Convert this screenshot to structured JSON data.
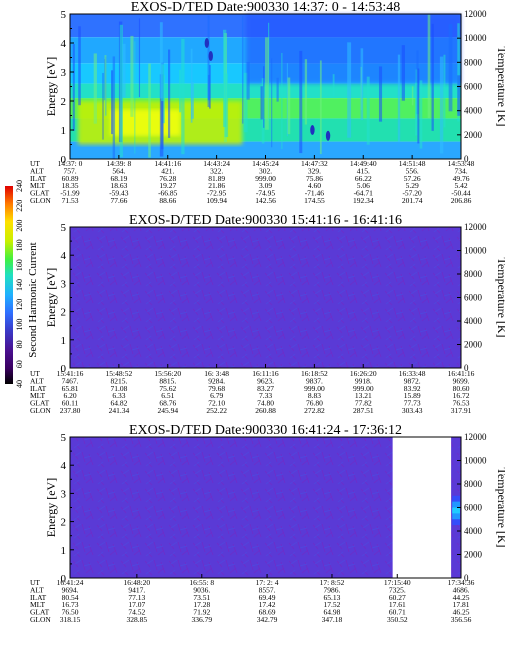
{
  "colorbar": {
    "label": "Second Harmonic Current",
    "ticks": [
      "40",
      "60",
      "80",
      "100",
      "120",
      "140",
      "160",
      "180",
      "200",
      "220",
      "240"
    ],
    "colors": [
      "#000000",
      "#2a0040",
      "#4a0070",
      "#5a1aa0",
      "#3a3ac8",
      "#2f6fff",
      "#1fa8ff",
      "#18d0e0",
      "#20e0a0",
      "#40f040",
      "#a0f010",
      "#e0ff00",
      "#ffe000",
      "#ff9a00",
      "#ff4000",
      "#e00000"
    ]
  },
  "chart_data": [
    {
      "type": "heatmap",
      "title": "EXOS-D/TED   Date:900330  14:37: 0 - 14:53:48",
      "ylabel": "Energy [eV]",
      "y2label": "Temperature [K]",
      "ylim": [
        0,
        5
      ],
      "y2lim": [
        0,
        12000
      ],
      "yticks": [
        "0",
        "1",
        "2",
        "3",
        "4",
        "5"
      ],
      "y2ticks": [
        "0",
        "2000",
        "4000",
        "6000",
        "8000",
        "10000",
        "12000"
      ],
      "row_labels": [
        "UT",
        "ALT",
        "ILAT",
        "MLT",
        "GLAT",
        "GLON"
      ],
      "columns": [
        [
          "14:37: 0",
          "757.",
          "60.89",
          "18.35",
          "-51.99",
          "71.53"
        ],
        [
          "14:39: 8",
          "564.",
          "68.19",
          "18.63",
          "-59.43",
          "77.66"
        ],
        [
          "14:41:16",
          "421.",
          "76.28",
          "19.27",
          "-66.85",
          "88.66"
        ],
        [
          "14:43:24",
          "322.",
          "81.89",
          "21.86",
          "-72.95",
          "109.94"
        ],
        [
          "14:45:24",
          "302.",
          "999.00",
          "3.09",
          "-74.95",
          "142.56"
        ],
        [
          "14:47:32",
          "329.",
          "75.86",
          "4.60",
          "-71.46",
          "174.55"
        ],
        [
          "14:49:40",
          "415.",
          "66.22",
          "5.06",
          "-64.71",
          "192.34"
        ],
        [
          "14:51:48",
          "556.",
          "57.26",
          "5.29",
          "-57.20",
          "201.74"
        ],
        [
          "14:53:48",
          "734.",
          "49.76",
          "5.42",
          "-50.44",
          "206.86"
        ]
      ],
      "coverage": [
        0,
        1
      ],
      "pattern": "spectrogram"
    },
    {
      "type": "heatmap",
      "title": "EXOS-D/TED   Date:900330  15:41:16 - 16:41:16",
      "ylabel": "Energy [eV]",
      "y2label": "Temperature [K]",
      "ylim": [
        0,
        5
      ],
      "y2lim": [
        0,
        12000
      ],
      "yticks": [
        "0",
        "1",
        "2",
        "3",
        "4",
        "5"
      ],
      "y2ticks": [
        "0",
        "2000",
        "4000",
        "6000",
        "8000",
        "10000",
        "12000"
      ],
      "row_labels": [
        "UT",
        "ALT",
        "ILAT",
        "MLT",
        "GLAT",
        "GLON"
      ],
      "columns": [
        [
          "15:41:16",
          "7467.",
          "65.81",
          "6.20",
          "60.11",
          "237.80"
        ],
        [
          "15:48:52",
          "8215.",
          "71.08",
          "6.33",
          "64.82",
          "241.34"
        ],
        [
          "15:56:20",
          "8815.",
          "75.62",
          "6.51",
          "68.76",
          "245.94"
        ],
        [
          "16: 3:48",
          "9284.",
          "79.68",
          "6.79",
          "72.10",
          "252.22"
        ],
        [
          "16:11:16",
          "9623.",
          "83.27",
          "7.33",
          "74.80",
          "260.88"
        ],
        [
          "16:18:52",
          "9837.",
          "999.00",
          "8.83",
          "76.80",
          "272.82"
        ],
        [
          "16:26:20",
          "9918.",
          "999.00",
          "13.21",
          "77.82",
          "287.51"
        ],
        [
          "16:33:48",
          "9872.",
          "83.92",
          "15.89",
          "77.73",
          "303.43"
        ],
        [
          "16:41:16",
          "9699.",
          "80.60",
          "16.72",
          "76.53",
          "317.91"
        ]
      ],
      "coverage": [
        0,
        1
      ],
      "pattern": "uniform"
    },
    {
      "type": "heatmap",
      "title": "EXOS-D/TED   Date:900330  16:41:24 - 17:36:12",
      "ylabel": "Energy [eV]",
      "y2label": "Temperature [K]",
      "ylim": [
        0,
        5
      ],
      "y2lim": [
        0,
        12000
      ],
      "yticks": [
        "0",
        "1",
        "2",
        "3",
        "4",
        "5"
      ],
      "y2ticks": [
        "0",
        "2000",
        "4000",
        "6000",
        "8000",
        "10000",
        "12000"
      ],
      "row_labels": [
        "UT",
        "ALT",
        "ILAT",
        "MLT",
        "GLAT",
        "GLON"
      ],
      "columns": [
        [
          "16:41:24",
          "9694.",
          "80.54",
          "16.73",
          "76.50",
          "318.15"
        ],
        [
          "16:48:20",
          "9417.",
          "77.13",
          "17.07",
          "74.52",
          "328.85"
        ],
        [
          "16:55: 8",
          "9036.",
          "73.51",
          "17.28",
          "71.92",
          "336.79"
        ],
        [
          "17: 2: 4",
          "8557.",
          "69.49",
          "17.42",
          "68.69",
          "342.79"
        ],
        [
          "17: 8:52",
          "7986.",
          "65.13",
          "17.52",
          "64.98",
          "347.18"
        ],
        [
          "17:15:40",
          "7325.",
          "60.27",
          "17.61",
          "60.71",
          "350.52"
        ],
        [
          "17:34:36",
          "4686.",
          "44.25",
          "17.81",
          "46.25",
          "356.56"
        ]
      ],
      "column_positions": [
        0,
        0.171,
        0.337,
        0.504,
        0.67,
        0.837,
        1.0
      ],
      "coverage": [
        0,
        0.825,
        0.975,
        1
      ],
      "pattern": "uniform"
    }
  ]
}
